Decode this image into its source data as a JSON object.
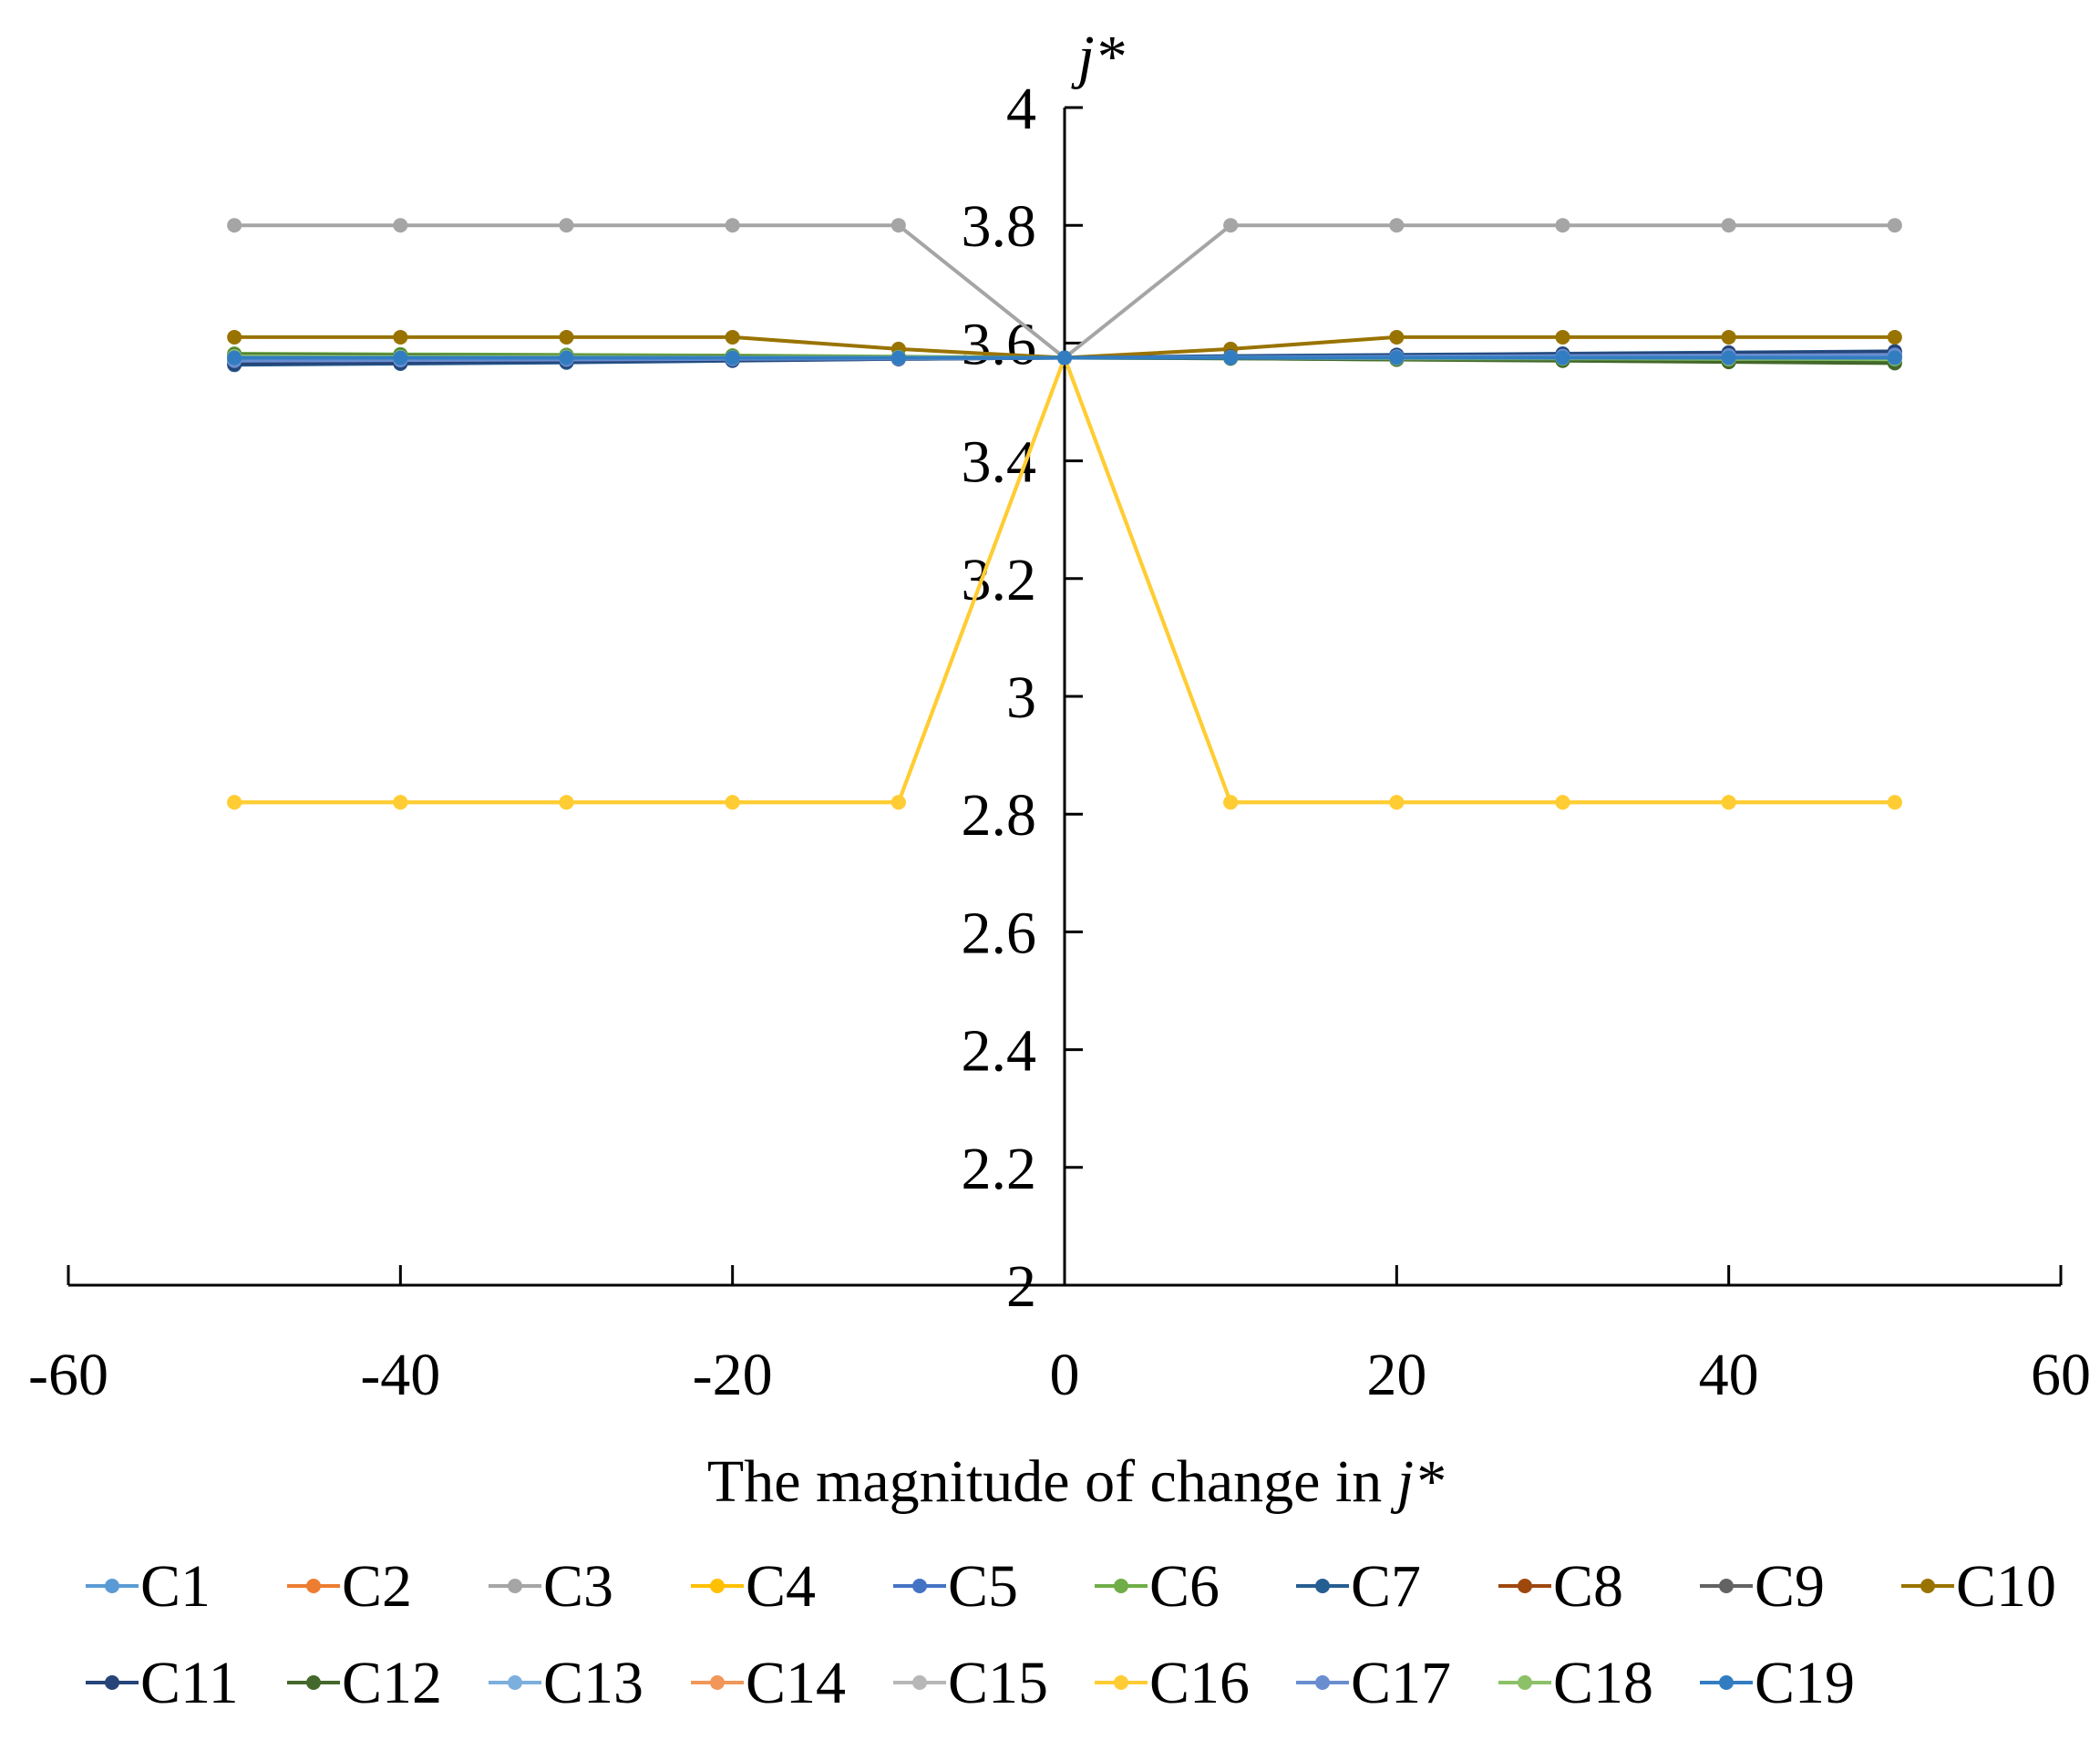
{
  "chart_data": {
    "type": "line",
    "xlabel_text": "The magnitude of change in ",
    "xlabel_italic": "j*",
    "ylabel": "j*",
    "xlim": [
      -60,
      60
    ],
    "ylim": [
      2,
      4
    ],
    "x_ticks": [
      "-60",
      "-40",
      "-20",
      "0",
      "20",
      "40",
      "60"
    ],
    "y_ticks": [
      "2",
      "2.2",
      "2.4",
      "2.6",
      "2.8",
      "3",
      "3.2",
      "3.4",
      "3.6",
      "3.8",
      "4"
    ],
    "x": [
      -50,
      -40,
      -30,
      -20,
      -10,
      0,
      10,
      20,
      30,
      40,
      50
    ],
    "grid": false,
    "legend_position": "bottom",
    "series": [
      {
        "name": "C1",
        "color": "#5B9BD5",
        "values": [
          3.575,
          3.575,
          3.575,
          3.575,
          3.575,
          3.575,
          3.575,
          3.575,
          3.575,
          3.575,
          3.575
        ]
      },
      {
        "name": "C2",
        "color": "#ED7D31",
        "values": [
          3.575,
          3.575,
          3.575,
          3.575,
          3.575,
          3.575,
          3.575,
          3.577,
          3.578,
          3.579,
          3.58
        ]
      },
      {
        "name": "C3",
        "color": "#A5A5A5",
        "values": [
          3.8,
          3.8,
          3.8,
          3.8,
          3.8,
          3.575,
          3.8,
          3.8,
          3.8,
          3.8,
          3.8
        ]
      },
      {
        "name": "C4",
        "color": "#FFC000",
        "values": [
          2.82,
          2.82,
          2.82,
          2.82,
          2.82,
          3.575,
          2.82,
          2.82,
          2.82,
          2.82,
          2.82
        ]
      },
      {
        "name": "C5",
        "color": "#4472C4",
        "values": [
          3.57,
          3.571,
          3.572,
          3.573,
          3.574,
          3.575,
          3.576,
          3.577,
          3.578,
          3.579,
          3.58
        ]
      },
      {
        "name": "C6",
        "color": "#70AD47",
        "values": [
          3.582,
          3.581,
          3.58,
          3.579,
          3.577,
          3.575,
          3.574,
          3.572,
          3.571,
          3.569,
          3.567
        ]
      },
      {
        "name": "C7",
        "color": "#255E91",
        "values": [
          3.563,
          3.565,
          3.567,
          3.57,
          3.573,
          3.575,
          3.578,
          3.58,
          3.582,
          3.584,
          3.586
        ]
      },
      {
        "name": "C8",
        "color": "#9E480E",
        "values": [
          3.575,
          3.575,
          3.575,
          3.575,
          3.575,
          3.575,
          3.575,
          3.575,
          3.575,
          3.575,
          3.575
        ]
      },
      {
        "name": "C9",
        "color": "#636363",
        "values": [
          3.575,
          3.575,
          3.575,
          3.575,
          3.575,
          3.575,
          3.575,
          3.575,
          3.575,
          3.575,
          3.575
        ]
      },
      {
        "name": "C10",
        "color": "#997300",
        "values": [
          3.61,
          3.61,
          3.61,
          3.61,
          3.59,
          3.575,
          3.59,
          3.61,
          3.61,
          3.61,
          3.61
        ]
      },
      {
        "name": "C11",
        "color": "#264478",
        "values": [
          3.565,
          3.567,
          3.569,
          3.571,
          3.573,
          3.575,
          3.577,
          3.579,
          3.581,
          3.583,
          3.585
        ]
      },
      {
        "name": "C12",
        "color": "#43682B",
        "values": [
          3.58,
          3.579,
          3.578,
          3.577,
          3.576,
          3.575,
          3.574,
          3.572,
          3.57,
          3.568,
          3.566
        ]
      },
      {
        "name": "C13",
        "color": "#7CAFDD",
        "values": [
          3.575,
          3.575,
          3.575,
          3.575,
          3.575,
          3.575,
          3.575,
          3.575,
          3.575,
          3.575,
          3.575
        ]
      },
      {
        "name": "C14",
        "color": "#F1975A",
        "values": [
          3.575,
          3.575,
          3.575,
          3.575,
          3.575,
          3.575,
          3.575,
          3.575,
          3.575,
          3.575,
          3.575
        ]
      },
      {
        "name": "C15",
        "color": "#B7B7B7",
        "values": [
          3.575,
          3.575,
          3.575,
          3.575,
          3.575,
          3.575,
          3.575,
          3.575,
          3.575,
          3.575,
          3.575
        ]
      },
      {
        "name": "C16",
        "color": "#FFCD33",
        "values": [
          2.82,
          2.82,
          2.82,
          2.82,
          2.82,
          3.575,
          2.82,
          2.82,
          2.82,
          2.82,
          2.82
        ]
      },
      {
        "name": "C17",
        "color": "#698ED0",
        "values": [
          3.57,
          3.571,
          3.572,
          3.573,
          3.574,
          3.575,
          3.576,
          3.577,
          3.578,
          3.579,
          3.58
        ]
      },
      {
        "name": "C18",
        "color": "#8CC168",
        "values": [
          3.578,
          3.577,
          3.577,
          3.576,
          3.576,
          3.575,
          3.575,
          3.574,
          3.574,
          3.573,
          3.573
        ]
      },
      {
        "name": "C19",
        "color": "#327DC2",
        "values": [
          3.575,
          3.575,
          3.575,
          3.575,
          3.575,
          3.575,
          3.575,
          3.575,
          3.575,
          3.575,
          3.575
        ]
      }
    ]
  }
}
